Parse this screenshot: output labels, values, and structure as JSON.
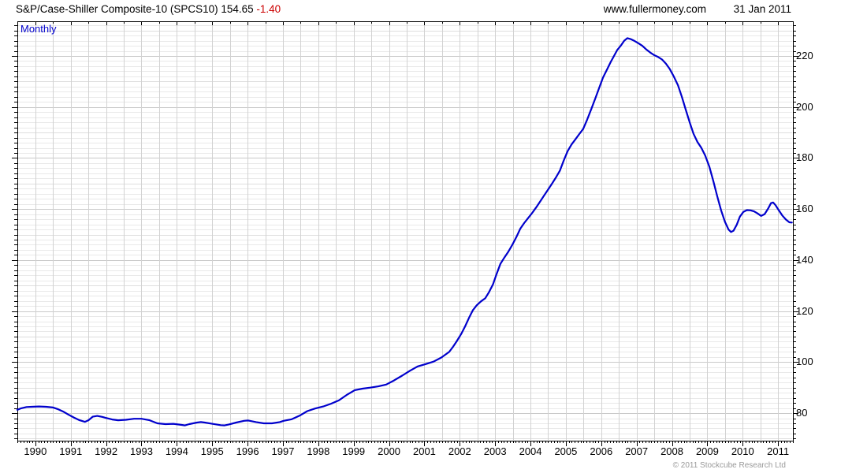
{
  "header": {
    "title": "S&P/Case-Shiller Composite-10 (SPCS10) 154.65",
    "change": "-1.40",
    "change_color": "#cc0000",
    "site": "www.fullermoney.com",
    "date": "31 Jan 2011"
  },
  "chart": {
    "frequency_label": "Monthly",
    "copyright": "© 2011 Stockcube Research Ltd",
    "line_color": "#0000cc",
    "grid_fine_color": "#e9e9e9",
    "grid_mid_color": "#dedede",
    "grid_major_color": "#c9c9c9",
    "grid_vert_color": "#d2d2d2"
  },
  "chart_data": {
    "type": "line",
    "title": "S&P/Case-Shiller Composite-10 (SPCS10)",
    "last_value": 154.65,
    "change": -1.4,
    "frequency": "Monthly",
    "xlabel": "",
    "ylabel": "",
    "xlim": [
      1989.49,
      2011.42
    ],
    "ylim": [
      69.2,
      233.6
    ],
    "x_ticks": [
      1990,
      1991,
      1992,
      1993,
      1994,
      1995,
      1996,
      1997,
      1998,
      1999,
      2000,
      2001,
      2002,
      2003,
      2004,
      2005,
      2006,
      2007,
      2008,
      2009,
      2010,
      2011
    ],
    "y_ticks": [
      80,
      100,
      120,
      140,
      160,
      180,
      200,
      220
    ],
    "grid": true,
    "legend_position": "none",
    "series": [
      {
        "name": "SPCS10",
        "points": [
          [
            1989.49,
            81.3
          ],
          [
            1989.6,
            81.9
          ],
          [
            1989.75,
            82.4
          ],
          [
            1989.9,
            82.5
          ],
          [
            1990.1,
            82.6
          ],
          [
            1990.3,
            82.5
          ],
          [
            1990.5,
            82.2
          ],
          [
            1990.65,
            81.5
          ],
          [
            1990.8,
            80.5
          ],
          [
            1990.95,
            79.3
          ],
          [
            1991.1,
            78.2
          ],
          [
            1991.25,
            77.2
          ],
          [
            1991.4,
            76.6
          ],
          [
            1991.5,
            77.2
          ],
          [
            1991.62,
            78.6
          ],
          [
            1991.75,
            78.9
          ],
          [
            1991.9,
            78.5
          ],
          [
            1992.0,
            78.1
          ],
          [
            1992.17,
            77.5
          ],
          [
            1992.34,
            77.2
          ],
          [
            1992.56,
            77.4
          ],
          [
            1992.79,
            77.8
          ],
          [
            1993.0,
            77.8
          ],
          [
            1993.23,
            77.2
          ],
          [
            1993.45,
            76.0
          ],
          [
            1993.68,
            75.7
          ],
          [
            1993.9,
            75.8
          ],
          [
            1994.12,
            75.4
          ],
          [
            1994.23,
            75.2
          ],
          [
            1994.35,
            75.7
          ],
          [
            1994.57,
            76.3
          ],
          [
            1994.68,
            76.5
          ],
          [
            1994.79,
            76.3
          ],
          [
            1995.0,
            75.8
          ],
          [
            1995.24,
            75.3
          ],
          [
            1995.35,
            75.2
          ],
          [
            1995.46,
            75.5
          ],
          [
            1995.68,
            76.3
          ],
          [
            1995.9,
            77.0
          ],
          [
            1996.02,
            77.1
          ],
          [
            1996.24,
            76.5
          ],
          [
            1996.46,
            76.0
          ],
          [
            1996.69,
            76.0
          ],
          [
            1996.91,
            76.5
          ],
          [
            1997.02,
            77.0
          ],
          [
            1997.25,
            77.6
          ],
          [
            1997.47,
            79.0
          ],
          [
            1997.69,
            80.8
          ],
          [
            1997.91,
            81.8
          ],
          [
            1998.14,
            82.6
          ],
          [
            1998.36,
            83.7
          ],
          [
            1998.58,
            85.0
          ],
          [
            1998.8,
            87.1
          ],
          [
            1999.03,
            89.0
          ],
          [
            1999.25,
            89.6
          ],
          [
            1999.47,
            90.0
          ],
          [
            1999.7,
            90.5
          ],
          [
            1999.92,
            91.2
          ],
          [
            2000.14,
            92.8
          ],
          [
            2000.37,
            94.7
          ],
          [
            2000.59,
            96.6
          ],
          [
            2000.81,
            98.3
          ],
          [
            2001.03,
            99.2
          ],
          [
            2001.26,
            100.2
          ],
          [
            2001.48,
            101.8
          ],
          [
            2001.7,
            104.0
          ],
          [
            2001.81,
            106.0
          ],
          [
            2001.92,
            108.3
          ],
          [
            2002.04,
            111.0
          ],
          [
            2002.15,
            114.0
          ],
          [
            2002.26,
            117.3
          ],
          [
            2002.37,
            120.3
          ],
          [
            2002.48,
            122.3
          ],
          [
            2002.6,
            123.8
          ],
          [
            2002.72,
            125.0
          ],
          [
            2002.83,
            127.5
          ],
          [
            2002.94,
            130.5
          ],
          [
            2003.04,
            134.5
          ],
          [
            2003.15,
            138.5
          ],
          [
            2003.26,
            141.0
          ],
          [
            2003.37,
            143.2
          ],
          [
            2003.48,
            145.8
          ],
          [
            2003.6,
            149.0
          ],
          [
            2003.71,
            152.3
          ],
          [
            2003.82,
            154.5
          ],
          [
            2003.93,
            156.4
          ],
          [
            2004.05,
            158.5
          ],
          [
            2004.16,
            160.6
          ],
          [
            2004.27,
            162.9
          ],
          [
            2004.38,
            165.2
          ],
          [
            2004.49,
            167.5
          ],
          [
            2004.6,
            169.8
          ],
          [
            2004.72,
            172.4
          ],
          [
            2004.83,
            175.0
          ],
          [
            2004.94,
            179.0
          ],
          [
            2005.05,
            182.7
          ],
          [
            2005.16,
            185.3
          ],
          [
            2005.27,
            187.3
          ],
          [
            2005.38,
            189.4
          ],
          [
            2005.49,
            191.4
          ],
          [
            2005.6,
            195.0
          ],
          [
            2005.72,
            199.2
          ],
          [
            2005.83,
            203.3
          ],
          [
            2005.94,
            207.4
          ],
          [
            2006.05,
            211.5
          ],
          [
            2006.16,
            214.6
          ],
          [
            2006.27,
            217.7
          ],
          [
            2006.36,
            220.0
          ],
          [
            2006.45,
            222.3
          ],
          [
            2006.55,
            224.0
          ],
          [
            2006.65,
            226.0
          ],
          [
            2006.74,
            227.0
          ],
          [
            2006.84,
            226.6
          ],
          [
            2006.94,
            225.9
          ],
          [
            2007.05,
            225.0
          ],
          [
            2007.16,
            224.0
          ],
          [
            2007.27,
            222.6
          ],
          [
            2007.39,
            221.3
          ],
          [
            2007.5,
            220.3
          ],
          [
            2007.61,
            219.6
          ],
          [
            2007.72,
            218.6
          ],
          [
            2007.83,
            217.0
          ],
          [
            2007.94,
            214.8
          ],
          [
            2008.05,
            212.0
          ],
          [
            2008.17,
            208.5
          ],
          [
            2008.28,
            204.0
          ],
          [
            2008.39,
            199.0
          ],
          [
            2008.5,
            194.0
          ],
          [
            2008.61,
            189.5
          ],
          [
            2008.72,
            186.3
          ],
          [
            2008.83,
            184.0
          ],
          [
            2008.94,
            181.0
          ],
          [
            2009.06,
            176.5
          ],
          [
            2009.17,
            171.0
          ],
          [
            2009.28,
            165.0
          ],
          [
            2009.39,
            159.5
          ],
          [
            2009.5,
            155.0
          ],
          [
            2009.6,
            152.0
          ],
          [
            2009.67,
            151.0
          ],
          [
            2009.74,
            151.5
          ],
          [
            2009.83,
            153.8
          ],
          [
            2009.92,
            157.0
          ],
          [
            2010.02,
            158.9
          ],
          [
            2010.12,
            159.6
          ],
          [
            2010.22,
            159.5
          ],
          [
            2010.32,
            159.1
          ],
          [
            2010.42,
            158.3
          ],
          [
            2010.52,
            157.3
          ],
          [
            2010.62,
            158.0
          ],
          [
            2010.72,
            160.2
          ],
          [
            2010.8,
            162.3
          ],
          [
            2010.86,
            162.6
          ],
          [
            2010.93,
            161.5
          ],
          [
            2011.02,
            159.5
          ],
          [
            2011.12,
            157.5
          ],
          [
            2011.22,
            155.9
          ],
          [
            2011.32,
            154.8
          ],
          [
            2011.39,
            154.7
          ]
        ]
      }
    ]
  }
}
